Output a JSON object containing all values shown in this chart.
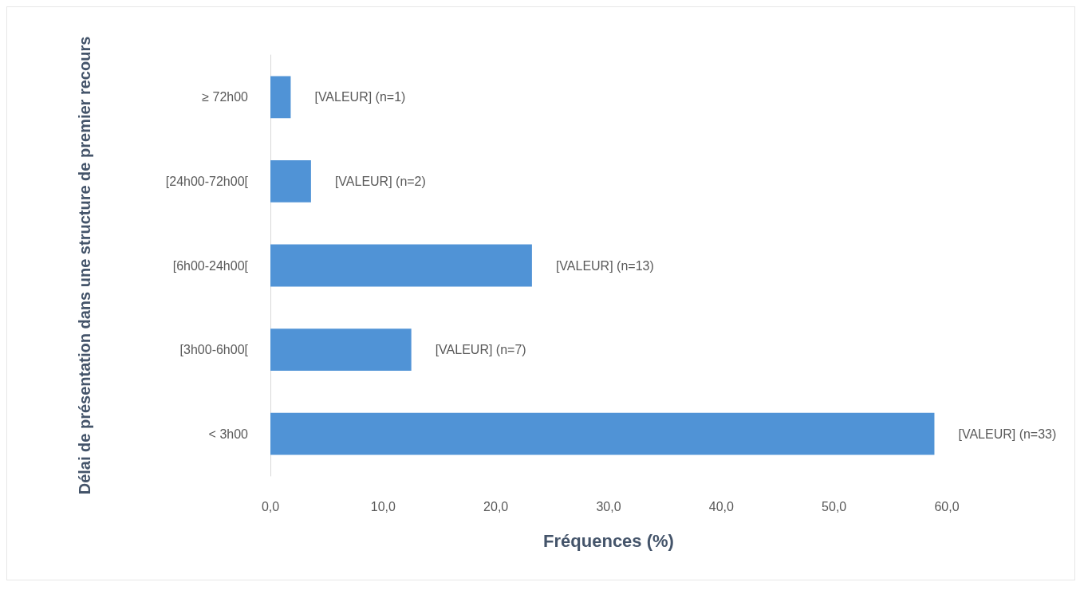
{
  "chart_data": {
    "type": "bar",
    "orientation": "horizontal",
    "xlabel": "Fréquences (%)",
    "ylabel": "Délai de présentation dans une structure de premier recours",
    "categories": [
      "≥ 72h00",
      "[24h00-72h00[",
      "[6h00-24h00[",
      "[3h00-6h00[",
      "< 3h00"
    ],
    "values": [
      1.8,
      3.6,
      23.2,
      12.5,
      58.9
    ],
    "annotations": [
      {
        "text": "[VALEUR] (n=1)",
        "x": 1.8,
        "y": "≥ 72h00"
      },
      {
        "text": "[VALEUR] (n=2)",
        "x": 3.6,
        "y": "[24h00-72h00["
      },
      {
        "text": "[VALEUR] (n=13)",
        "x": 23.2,
        "y": "[6h00-24h00["
      },
      {
        "text": "[VALEUR] (n=7)",
        "x": 12.5,
        "y": "[3h00-6h00["
      },
      {
        "text": "[VALEUR] (n=33)",
        "x": 58.9,
        "y": "< 3h00"
      }
    ],
    "color": "#5093d6",
    "xlim": [
      0,
      60
    ],
    "xticks": [
      {
        "value": 0,
        "label": "0,0"
      },
      {
        "value": 10,
        "label": "10,0"
      },
      {
        "value": 20,
        "label": "20,0"
      },
      {
        "value": 30,
        "label": "30,0"
      },
      {
        "value": 40,
        "label": "40,0"
      },
      {
        "value": 50,
        "label": "50,0"
      },
      {
        "value": 60,
        "label": "60,0"
      }
    ],
    "grid": false
  }
}
